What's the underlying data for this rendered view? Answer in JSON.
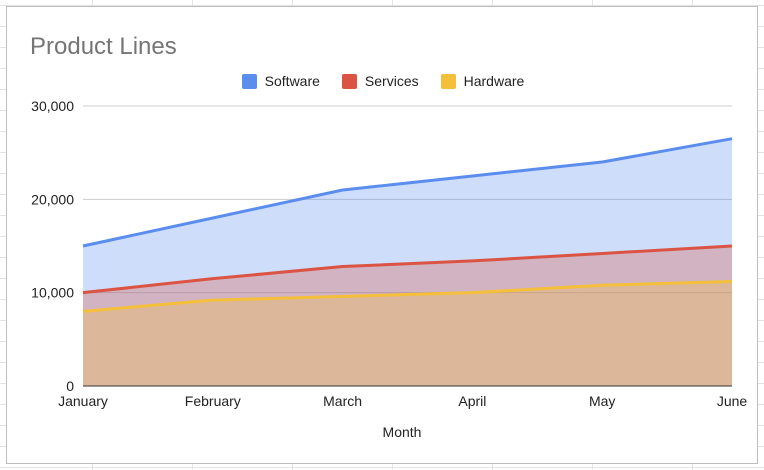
{
  "chart_data": {
    "type": "area",
    "stacked": false,
    "title": "Product Lines",
    "xlabel": "Month",
    "ylabel": "",
    "categories": [
      "January",
      "February",
      "March",
      "April",
      "May",
      "June"
    ],
    "ylim": [
      0,
      30000
    ],
    "yticks": [
      0,
      10000,
      20000,
      30000
    ],
    "ytick_labels": [
      "0",
      "10,000",
      "20,000",
      "30,000"
    ],
    "grid": true,
    "legend_position": "top",
    "series": [
      {
        "name": "Software",
        "color": "#5b8def",
        "values": [
          15000,
          18000,
          21000,
          22500,
          24000,
          26500
        ]
      },
      {
        "name": "Services",
        "color": "#db5443",
        "values": [
          10000,
          11500,
          12800,
          13400,
          14200,
          15000
        ]
      },
      {
        "name": "Hardware",
        "color": "#f4bf3a",
        "values": [
          8000,
          9200,
          9600,
          10000,
          10800,
          11200
        ]
      }
    ]
  }
}
